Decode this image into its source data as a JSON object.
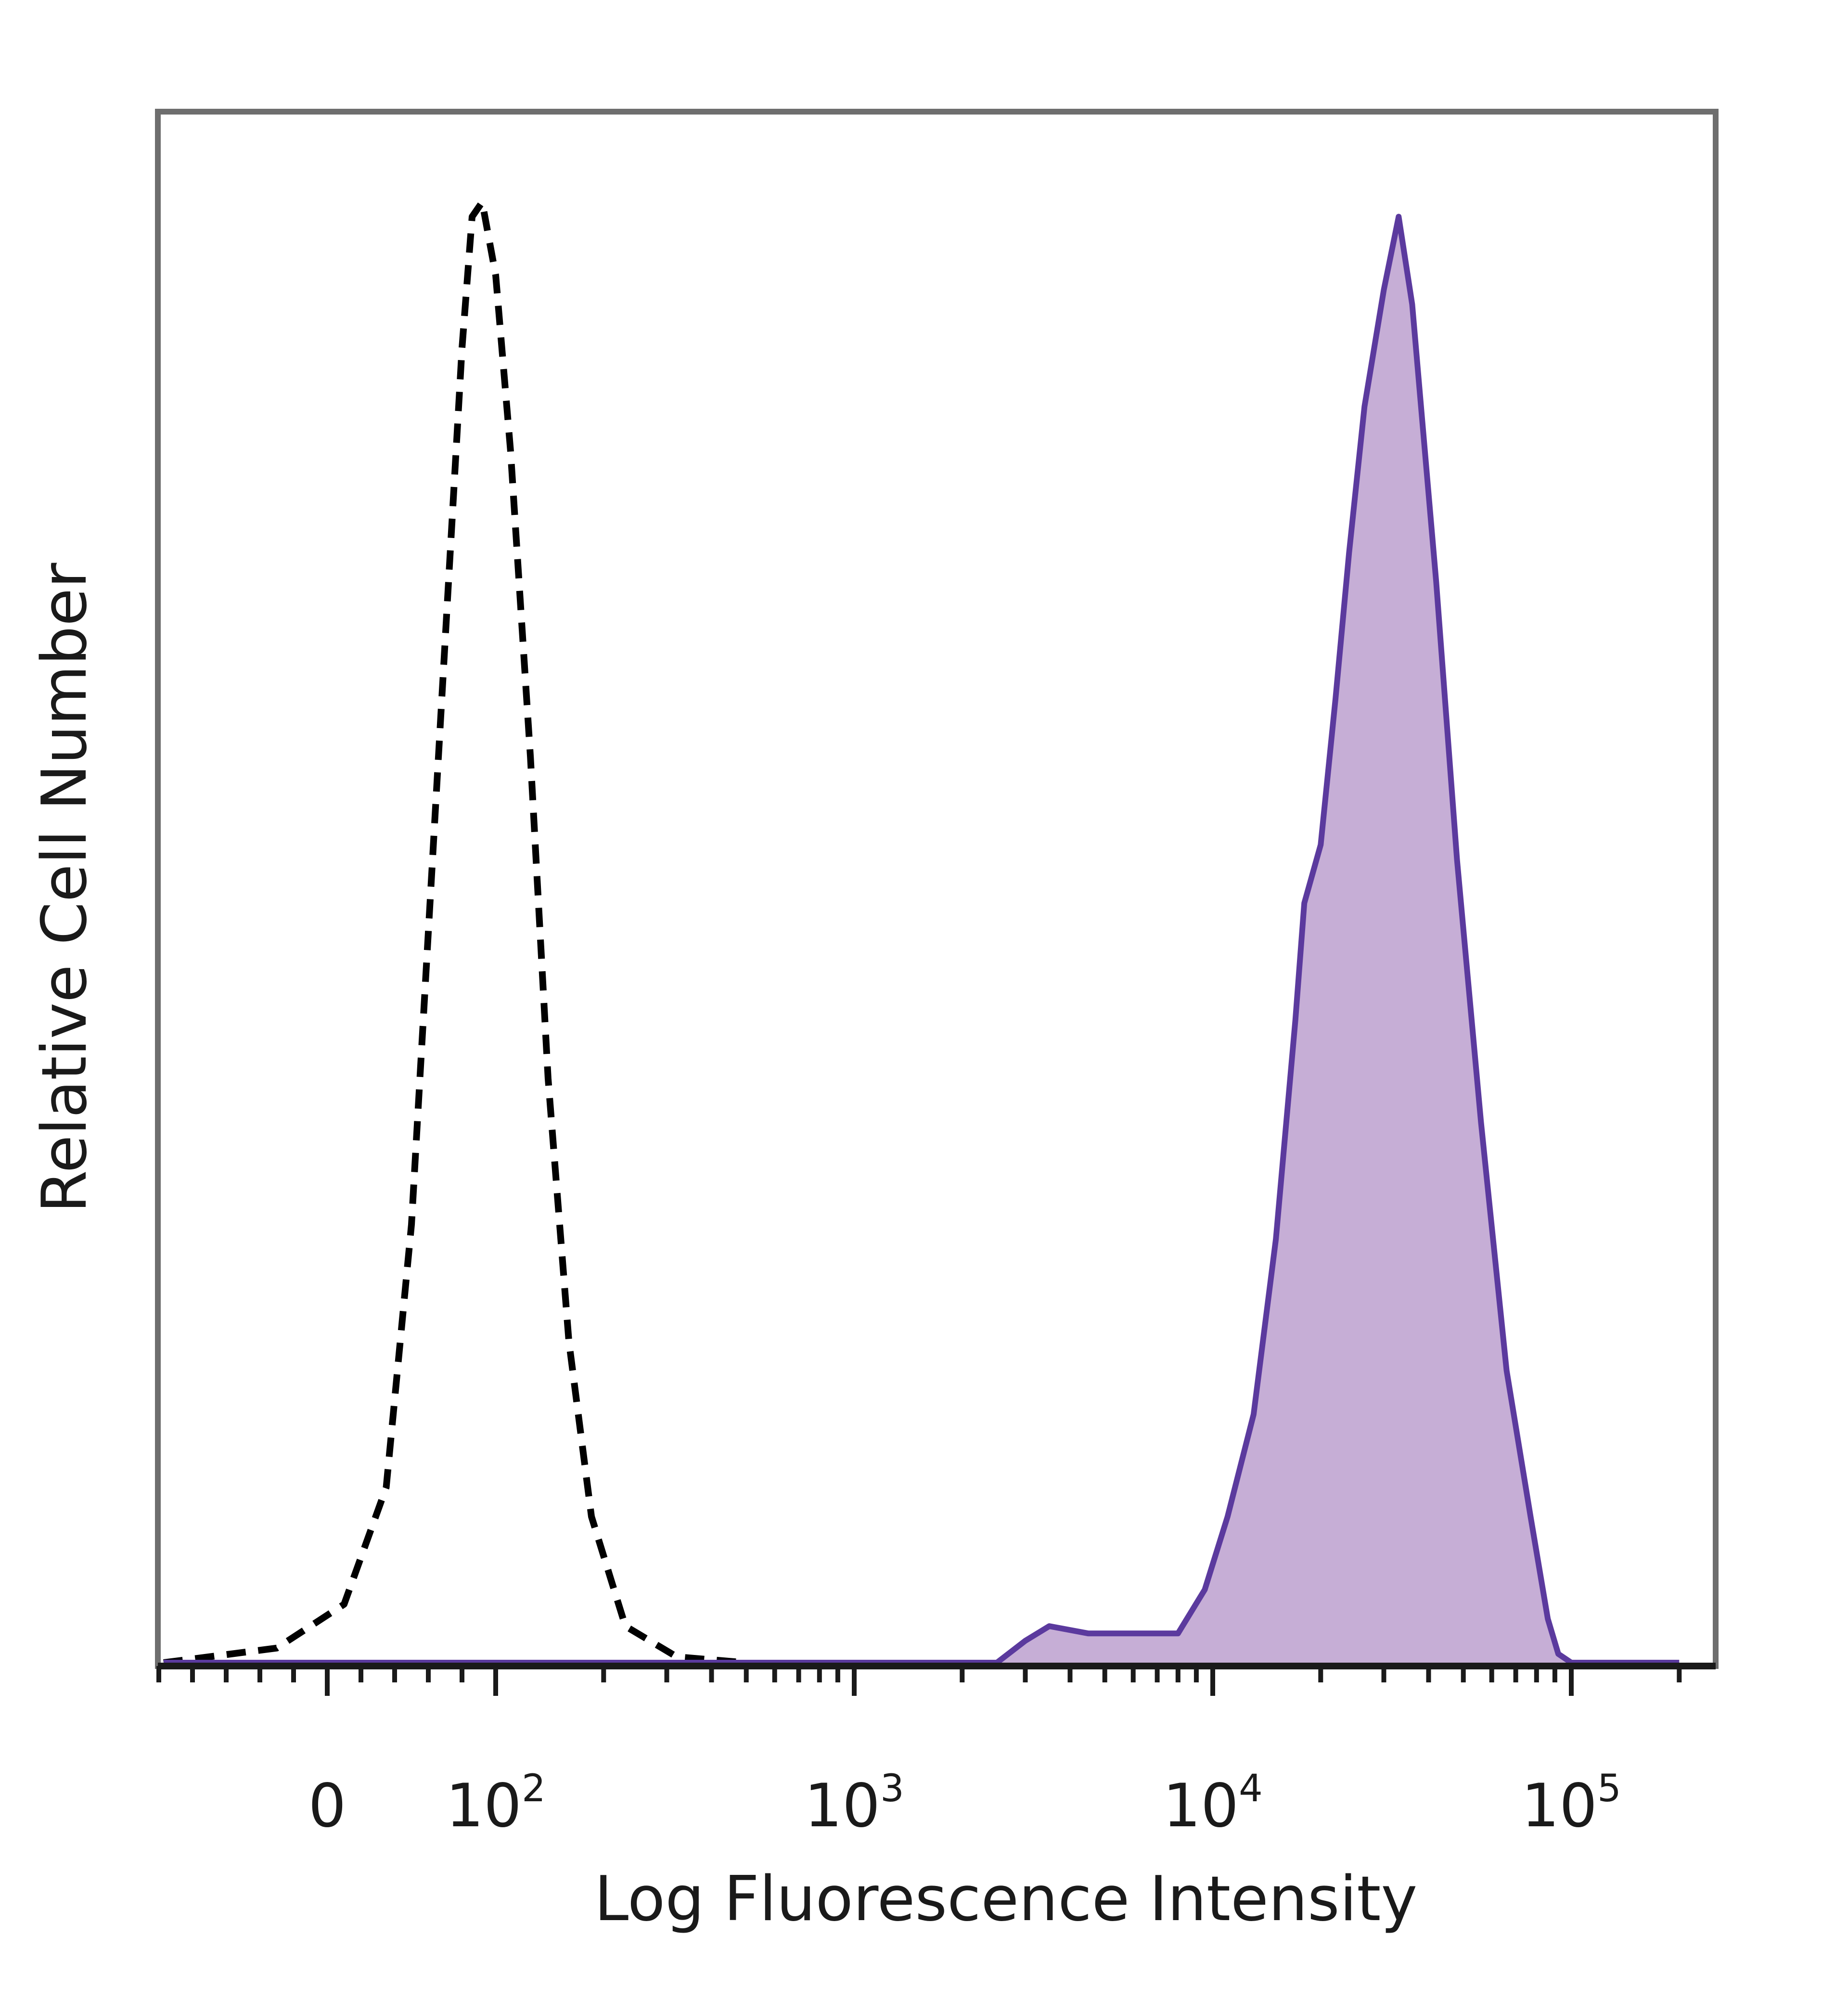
{
  "chart_data": {
    "type": "area",
    "xlabel": "Log Fluorescence Intensity",
    "ylabel": "Relative Cell Number",
    "x_scale": "biexponential",
    "xlim": [
      -100,
      200000
    ],
    "ylim": [
      0,
      1
    ],
    "grid": false,
    "x_ticks": [
      {
        "value": 0,
        "label": "0",
        "sup": ""
      },
      {
        "value": 100,
        "label": "10",
        "sup": "2"
      },
      {
        "value": 1000,
        "label": "10",
        "sup": "3"
      },
      {
        "value": 10000,
        "label": "10",
        "sup": "4"
      },
      {
        "value": 100000,
        "label": "10",
        "sup": "5"
      }
    ],
    "series": [
      {
        "style": "dashed",
        "color": "#000000",
        "filled": false,
        "points": [
          [
            -100,
            0.0
          ],
          [
            -30,
            0.01
          ],
          [
            10,
            0.04
          ],
          [
            35,
            0.12
          ],
          [
            50,
            0.3
          ],
          [
            60,
            0.5
          ],
          [
            70,
            0.7
          ],
          [
            80,
            0.9
          ],
          [
            86,
            0.99
          ],
          [
            92,
            1.0
          ],
          [
            100,
            0.95
          ],
          [
            110,
            0.83
          ],
          [
            125,
            0.62
          ],
          [
            140,
            0.4
          ],
          [
            160,
            0.22
          ],
          [
            185,
            0.1
          ],
          [
            230,
            0.025
          ],
          [
            320,
            0.004
          ],
          [
            500,
            0.0
          ]
        ]
      },
      {
        "style": "solid",
        "color": "#5B3A9E",
        "fill": "#C6AED6",
        "filled": true,
        "points": [
          [
            -100,
            0.0
          ],
          [
            2500,
            0.0
          ],
          [
            3000,
            0.015
          ],
          [
            3500,
            0.025
          ],
          [
            4500,
            0.02
          ],
          [
            6000,
            0.02
          ],
          [
            8000,
            0.02
          ],
          [
            9500,
            0.05
          ],
          [
            11000,
            0.1
          ],
          [
            13000,
            0.17
          ],
          [
            15000,
            0.29
          ],
          [
            17000,
            0.44
          ],
          [
            18000,
            0.52
          ],
          [
            20000,
            0.56
          ],
          [
            22000,
            0.66
          ],
          [
            24000,
            0.76
          ],
          [
            26500,
            0.86
          ],
          [
            30000,
            0.94
          ],
          [
            33000,
            0.99
          ],
          [
            36000,
            0.93
          ],
          [
            42000,
            0.74
          ],
          [
            48000,
            0.55
          ],
          [
            56000,
            0.37
          ],
          [
            66000,
            0.2
          ],
          [
            77000,
            0.1
          ],
          [
            86000,
            0.03
          ],
          [
            92000,
            0.006
          ],
          [
            100000,
            0.0
          ],
          [
            200000,
            0.0
          ]
        ]
      }
    ]
  }
}
